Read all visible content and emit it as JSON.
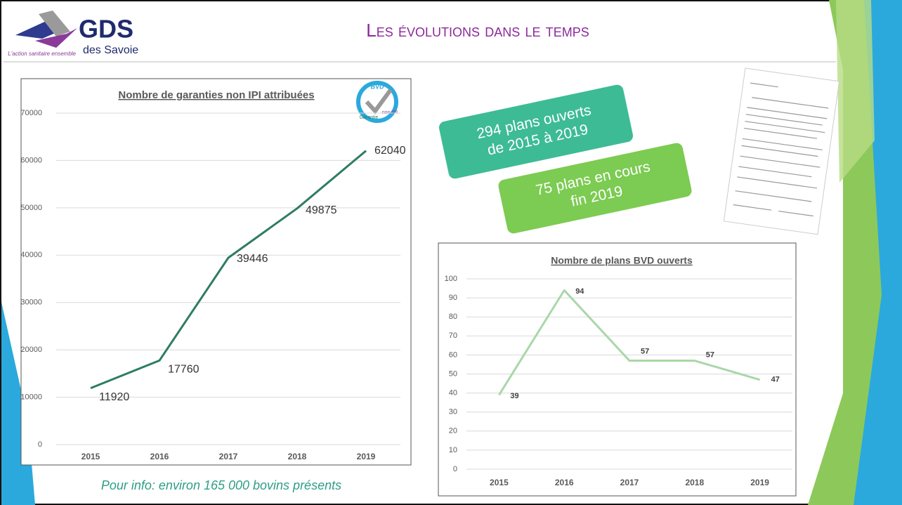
{
  "header": {
    "logo": "GDS",
    "logo_sub": "des Savoie",
    "tagline": "L'action sanitaire ensemble",
    "title": "Les évolutions dans le temps"
  },
  "badge": {
    "top": "BVD",
    "left": "Garantie",
    "right": "non IPI"
  },
  "callouts": [
    {
      "lines": [
        "294 plans ouverts",
        "de 2015 à 2019"
      ],
      "color": "#3dbb95"
    },
    {
      "lines": [
        "75 plans en cours",
        "fin 2019"
      ],
      "color": "#7ccb52"
    }
  ],
  "note": "Pour info: environ 165 000 bovins présents",
  "chart_data": [
    {
      "type": "line",
      "title": "Nombre de garanties non IPI attribuées",
      "categories": [
        "2015",
        "2016",
        "2017",
        "2018",
        "2019"
      ],
      "values": [
        11920,
        17760,
        39446,
        49875,
        62040
      ],
      "color": "#2e7d60",
      "ylim": [
        0,
        70000
      ],
      "yticks": [
        0,
        10000,
        20000,
        30000,
        40000,
        50000,
        60000,
        70000
      ],
      "grid": true
    },
    {
      "type": "line",
      "title": "Nombre de plans BVD ouverts",
      "categories": [
        "2015",
        "2016",
        "2017",
        "2018",
        "2019"
      ],
      "values": [
        39,
        94,
        57,
        57,
        47
      ],
      "color": "#a9d7a8",
      "ylim": [
        0,
        100
      ],
      "yticks": [
        0,
        10,
        20,
        30,
        40,
        50,
        60,
        70,
        80,
        90,
        100
      ],
      "grid": true
    }
  ]
}
